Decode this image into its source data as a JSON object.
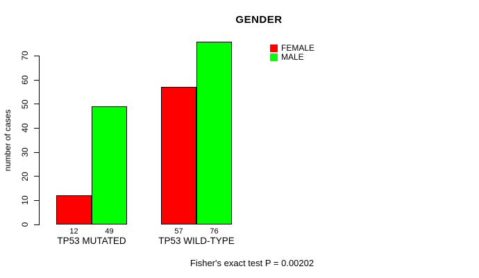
{
  "chart_data": {
    "type": "bar",
    "title": "GENDER",
    "xlabel": "",
    "ylabel": "number of cases",
    "categories": [
      "TP53 MUTATED",
      "TP53 WILD-TYPE"
    ],
    "series": [
      {
        "name": "FEMALE",
        "color": "#ff0000",
        "values": [
          12,
          57
        ]
      },
      {
        "name": "MALE",
        "color": "#00ff00",
        "values": [
          49,
          76
        ]
      }
    ],
    "ylim": [
      0,
      76
    ],
    "yticks": [
      0,
      10,
      20,
      30,
      40,
      50,
      60,
      70
    ],
    "bar_value_labels": [
      [
        12,
        49
      ],
      [
        57,
        76
      ]
    ],
    "legend_position": "top-right",
    "grid": false,
    "annotation": "Fisher's exact test P = 0.00202"
  }
}
